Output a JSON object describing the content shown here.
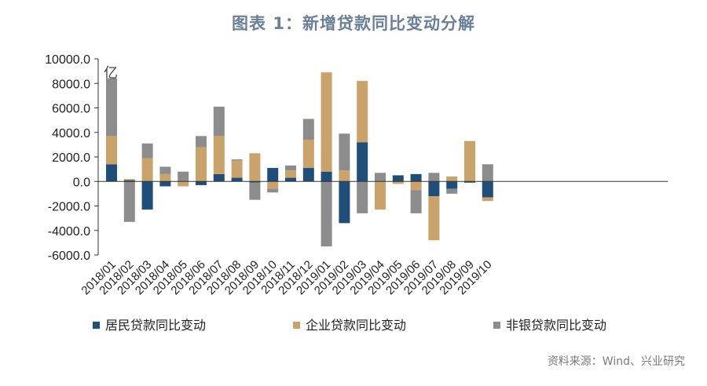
{
  "title": "图表 1：新增贷款同比变动分解",
  "source": "资料来源：Wind、兴业研究",
  "colors": {
    "resident": "#1f4e79",
    "corporate": "#c9a36b",
    "nonbank": "#8c8c8c",
    "title": "#6b7f96"
  },
  "chart_data": {
    "type": "bar",
    "stacked": true,
    "unit_label": "亿",
    "ylim": [
      -6000,
      10000
    ],
    "yticks": [
      10000,
      8000,
      6000,
      4000,
      2000,
      0,
      -2000,
      -4000,
      -6000
    ],
    "ytick_labels": [
      "10000.0",
      "8000.0",
      "6000.0",
      "4000.0",
      "2000.0",
      "0.0",
      "-2000.0",
      "-4000.0",
      "-6000.0"
    ],
    "categories": [
      "2018/01",
      "2018/02",
      "2018/03",
      "2018/04",
      "2018/05",
      "2018/06",
      "2018/07",
      "2018/08",
      "2018/09",
      "2018/10",
      "2018/11",
      "2018/12",
      "2019/01",
      "2019/02",
      "2019/03",
      "2019/04",
      "2019/05",
      "2019/06",
      "2019/07",
      "2019/08",
      "2019/09",
      "2019/10"
    ],
    "series": [
      {
        "name": "居民贷款同比变动",
        "key": "resident",
        "values": [
          1400,
          100,
          -2300,
          -400,
          0,
          -300,
          600,
          300,
          -100,
          1100,
          300,
          1100,
          800,
          -3400,
          3200,
          0,
          500,
          600,
          -1200,
          -600,
          -100,
          -1300
        ]
      },
      {
        "name": "企业贷款同比变动",
        "key": "corporate",
        "values": [
          2300,
          100,
          1900,
          600,
          -400,
          2800,
          3100,
          1400,
          2300,
          -600,
          600,
          2300,
          8100,
          900,
          5000,
          -2300,
          -200,
          -700,
          -3600,
          400,
          3300,
          -300
        ]
      },
      {
        "name": "非银贷款同比变动",
        "key": "nonbank",
        "values": [
          4700,
          -3300,
          1200,
          600,
          800,
          900,
          2400,
          100,
          -1400,
          -300,
          400,
          1700,
          -5300,
          3000,
          -2600,
          700,
          0,
          -1900,
          700,
          -400,
          0,
          1400
        ]
      }
    ],
    "legend": [
      "居民贷款同比变动",
      "企业贷款同比变动",
      "非银贷款同比变动"
    ],
    "legend_position": "bottom"
  }
}
